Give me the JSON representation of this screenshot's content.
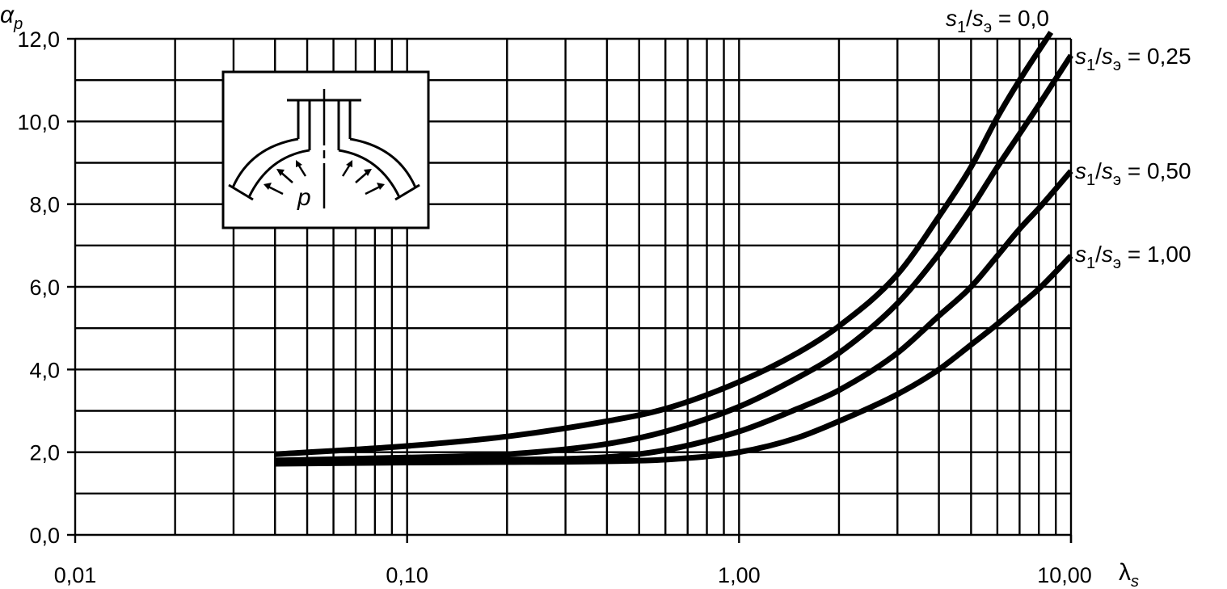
{
  "chart_data": {
    "type": "line",
    "x_scale": "log",
    "xlim": [
      0.01,
      10.0
    ],
    "ylim": [
      0,
      12
    ],
    "grid": true,
    "xlabel": {
      "main": "λ",
      "sub": "s"
    },
    "ylabel": {
      "main": "α",
      "sub": "p"
    },
    "x_ticks": [
      {
        "value": 0.01,
        "label": "0,01"
      },
      {
        "value": 0.1,
        "label": "0,10"
      },
      {
        "value": 1.0,
        "label": "1,00"
      },
      {
        "value": 10.0,
        "label": "10,00"
      }
    ],
    "y_ticks": [
      {
        "value": 0,
        "label": "0,0"
      },
      {
        "value": 2,
        "label": "2,0"
      },
      {
        "value": 4,
        "label": "4,0"
      },
      {
        "value": 6,
        "label": "6,0"
      },
      {
        "value": 8,
        "label": "8,0"
      },
      {
        "value": 10,
        "label": "10,0"
      },
      {
        "value": 12,
        "label": "12,0"
      }
    ],
    "series": [
      {
        "name": "s1/sэ = 0,0",
        "label": {
          "s_a": "s",
          "sub_a": "1",
          "s_b": "s",
          "sub_b": "э",
          "value": "= 0,0"
        },
        "x": [
          0.04,
          0.1,
          0.2,
          0.4,
          0.6,
          1.0,
          1.5,
          2.0,
          3.0,
          4.0,
          5.0,
          6.0,
          7.0,
          8.7
        ],
        "y": [
          1.95,
          2.15,
          2.38,
          2.75,
          3.05,
          3.7,
          4.4,
          5.05,
          6.3,
          7.7,
          8.9,
          10.1,
          11.0,
          12.2
        ]
      },
      {
        "name": "s1/sэ = 0,25",
        "label": {
          "s_a": "s",
          "sub_a": "1",
          "s_b": "s",
          "sub_b": "э",
          "value": "= 0,25"
        },
        "x": [
          0.04,
          0.1,
          0.2,
          0.4,
          0.6,
          1.0,
          1.5,
          2.0,
          3.0,
          4.0,
          5.0,
          6.0,
          7.0,
          8.0,
          10.0
        ],
        "y": [
          1.8,
          1.87,
          1.95,
          2.2,
          2.5,
          3.1,
          3.8,
          4.4,
          5.6,
          6.8,
          7.9,
          8.9,
          9.7,
          10.4,
          11.6
        ]
      },
      {
        "name": "s1/sэ = 0,50",
        "label": {
          "s_a": "s",
          "sub_a": "1",
          "s_b": "s",
          "sub_b": "э",
          "value": "= 0,50"
        },
        "x": [
          0.04,
          0.1,
          0.2,
          0.4,
          0.6,
          1.0,
          1.5,
          2.0,
          3.0,
          4.0,
          5.0,
          6.0,
          7.0,
          8.0,
          10.0
        ],
        "y": [
          1.78,
          1.8,
          1.82,
          1.88,
          2.05,
          2.5,
          3.05,
          3.5,
          4.4,
          5.3,
          6.0,
          6.75,
          7.4,
          7.9,
          8.8
        ]
      },
      {
        "name": "s1/sэ = 1,00",
        "label": {
          "s_a": "s",
          "sub_a": "1",
          "s_b": "s",
          "sub_b": "э",
          "value": "= 1,00"
        },
        "x": [
          0.04,
          0.1,
          0.2,
          0.4,
          0.6,
          1.0,
          1.5,
          2.0,
          3.0,
          4.0,
          5.0,
          6.0,
          7.0,
          8.0,
          10.0
        ],
        "y": [
          1.72,
          1.75,
          1.76,
          1.78,
          1.82,
          2.0,
          2.35,
          2.75,
          3.4,
          4.0,
          4.6,
          5.1,
          5.55,
          5.95,
          6.75
        ]
      }
    ],
    "inset": {
      "label": "p"
    }
  }
}
